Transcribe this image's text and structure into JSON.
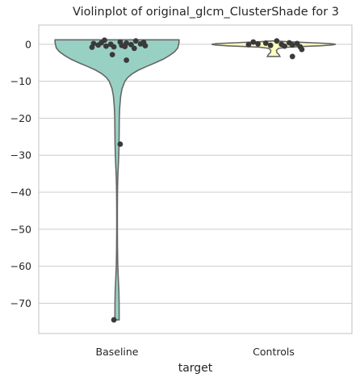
{
  "chart_data": {
    "type": "violin",
    "title": "Violinplot of original_glcm_ClusterShade for 3",
    "xlabel": "target",
    "ylabel": "",
    "categories": [
      "Baseline",
      "Controls"
    ],
    "ylim": [
      -78.2,
      5.2
    ],
    "yticks": [
      0,
      -10,
      -20,
      -30,
      -40,
      -50,
      -60,
      -70
    ],
    "ytick_labels": [
      "0",
      "−10",
      "−20",
      "−30",
      "−40",
      "−50",
      "−60",
      "−70"
    ],
    "grid": true,
    "colors": {
      "Baseline": "#98d1c4",
      "Controls": "#ffffc0",
      "points": "#3a3a3a",
      "outline": "#666666"
    },
    "series": [
      {
        "category": "Baseline",
        "range": [
          -74.5,
          1.2
        ],
        "density": [
          [
            1.2,
            0.99
          ],
          [
            0.5,
            0.99
          ],
          [
            -1,
            0.97
          ],
          [
            -2,
            0.92
          ],
          [
            -3,
            0.84
          ],
          [
            -4,
            0.74
          ],
          [
            -5,
            0.61
          ],
          [
            -6,
            0.47
          ],
          [
            -7,
            0.34
          ],
          [
            -8,
            0.24
          ],
          [
            -9,
            0.17
          ],
          [
            -10,
            0.125
          ],
          [
            -12,
            0.08
          ],
          [
            -14,
            0.058
          ],
          [
            -17,
            0.043
          ],
          [
            -20,
            0.036
          ],
          [
            -24,
            0.034
          ],
          [
            -27,
            0.032
          ],
          [
            -30,
            0.027
          ],
          [
            -33,
            0.02
          ],
          [
            -36,
            0.012
          ],
          [
            -40,
            0.007
          ],
          [
            -45,
            0.005
          ],
          [
            -50,
            0.005
          ],
          [
            -55,
            0.007
          ],
          [
            -60,
            0.012
          ],
          [
            -64,
            0.022
          ],
          [
            -67,
            0.03
          ],
          [
            -70,
            0.033
          ],
          [
            -72,
            0.034
          ],
          [
            -74.5,
            0.034
          ]
        ],
        "points": [
          [
            1.1,
            -0.08
          ],
          [
            0.9,
            0.12
          ],
          [
            0.6,
            0.02
          ],
          [
            0.4,
            -0.1
          ],
          [
            0.3,
            0.06
          ],
          [
            0.2,
            -0.15
          ],
          [
            0.1,
            0.15
          ],
          [
            0.0,
            -0.04
          ],
          [
            -0.1,
            0.09
          ],
          [
            -0.2,
            -0.12
          ],
          [
            -0.3,
            0.03
          ],
          [
            -0.4,
            0.18
          ],
          [
            -0.5,
            -0.07
          ],
          [
            -0.6,
            0.05
          ],
          [
            -0.8,
            -0.16
          ],
          [
            -1.1,
            0.11
          ],
          [
            -0.7,
            -0.02
          ],
          [
            0.5,
            0.17
          ],
          [
            -2.8,
            -0.03
          ],
          [
            -4.3,
            0.06
          ],
          [
            -27.0,
            0.02
          ],
          [
            -74.5,
            -0.02
          ]
        ]
      },
      {
        "category": "Controls",
        "range": [
          -3.3,
          0.9
        ],
        "density": [
          [
            0.9,
            0.02
          ],
          [
            0.7,
            0.2
          ],
          [
            0.4,
            0.62
          ],
          [
            0.2,
            0.9
          ],
          [
            0.0,
            0.99
          ],
          [
            -0.2,
            0.93
          ],
          [
            -0.4,
            0.75
          ],
          [
            -0.6,
            0.48
          ],
          [
            -0.8,
            0.22
          ],
          [
            -1.1,
            0.08
          ],
          [
            -1.6,
            0.045
          ],
          [
            -2.2,
            0.05
          ],
          [
            -2.8,
            0.085
          ],
          [
            -3.3,
            0.1
          ]
        ],
        "points": [
          [
            0.9,
            0.02
          ],
          [
            0.6,
            -0.13
          ],
          [
            0.4,
            0.1
          ],
          [
            0.3,
            -0.05
          ],
          [
            0.2,
            0.15
          ],
          [
            0.1,
            -0.1
          ],
          [
            0.0,
            0.05
          ],
          [
            -0.1,
            -0.16
          ],
          [
            -0.2,
            0.12
          ],
          [
            -0.3,
            -0.02
          ],
          [
            -0.5,
            0.07
          ],
          [
            -0.7,
            0.17
          ],
          [
            -1.4,
            0.18
          ],
          [
            -3.3,
            0.12
          ]
        ]
      }
    ]
  }
}
